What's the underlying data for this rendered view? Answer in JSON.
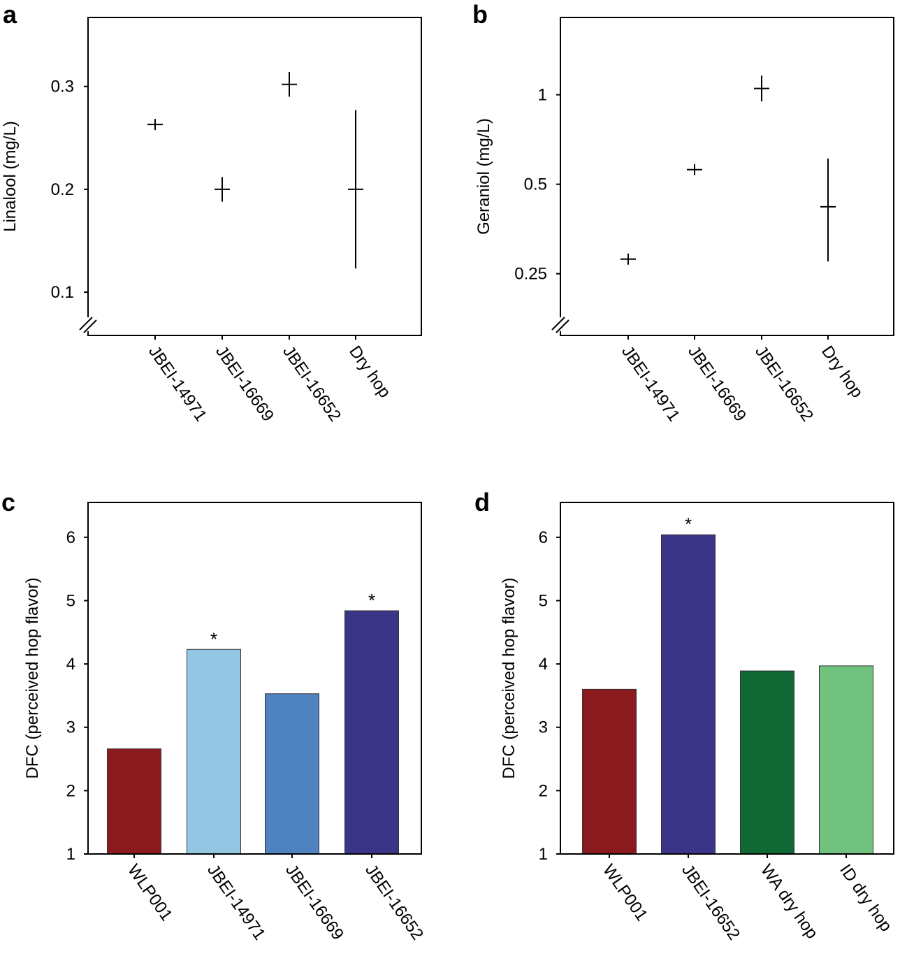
{
  "chart_data": [
    {
      "panel": "a",
      "type": "scatter",
      "ylabel": "Linalool (mg/L)",
      "yscale": "linear",
      "ylim": [
        0.058,
        0.367
      ],
      "yticks": [
        0.1,
        0.2,
        0.3
      ],
      "ytick_labels": [
        "0.1",
        "0.2",
        "0.3"
      ],
      "axis_break": true,
      "categories": [
        "JBEI-14971",
        "JBEI-16669",
        "JBEI-16652",
        "Dry hop"
      ],
      "values": [
        0.263,
        0.2,
        0.302,
        0.2
      ],
      "err_low": [
        0.263,
        0.188,
        0.29,
        0.123
      ],
      "err_high": [
        0.263,
        0.212,
        0.314,
        0.277
      ]
    },
    {
      "panel": "b",
      "type": "scatter",
      "ylabel": "Geraniol (mg/L)",
      "yscale": "log2",
      "ylim": [
        0.155,
        1.82
      ],
      "yticks": [
        0.25,
        0.5,
        1
      ],
      "ytick_labels": [
        "0.25",
        "0.5",
        "1"
      ],
      "axis_break": true,
      "categories": [
        "JBEI-14971",
        "JBEI-16669",
        "JBEI-16652",
        "Dry hop"
      ],
      "values": [
        0.28,
        0.56,
        1.05,
        0.42
      ],
      "err_low": [
        0.28,
        0.56,
        0.95,
        0.275
      ],
      "err_high": [
        0.28,
        0.56,
        1.16,
        0.61
      ]
    },
    {
      "panel": "c",
      "type": "bar",
      "ylabel": "DFC (perceived hop flavor)",
      "ylim": [
        1,
        6.55
      ],
      "yticks": [
        1,
        2,
        3,
        4,
        5,
        6
      ],
      "ytick_labels": [
        "1",
        "2",
        "3",
        "4",
        "5",
        "6"
      ],
      "categories": [
        "WLP001",
        "JBEI-14971",
        "JBEI-16669",
        "JBEI-16652"
      ],
      "values": [
        2.66,
        4.23,
        3.53,
        4.84
      ],
      "colors": [
        "#8b1a1e",
        "#94c6e4",
        "#4f83bf",
        "#3a3587"
      ],
      "significance": [
        "",
        "*",
        "",
        "*"
      ]
    },
    {
      "panel": "d",
      "type": "bar",
      "ylabel": "DFC (perceived hop flavor)",
      "ylim": [
        1,
        6.55
      ],
      "yticks": [
        1,
        2,
        3,
        4,
        5,
        6
      ],
      "ytick_labels": [
        "1",
        "2",
        "3",
        "4",
        "5",
        "6"
      ],
      "categories": [
        "WLP001",
        "JBEI-16652",
        "WA dry hop",
        "ID dry hop"
      ],
      "values": [
        3.6,
        6.04,
        3.89,
        3.97
      ],
      "colors": [
        "#8b1a1e",
        "#3a3587",
        "#0f6734",
        "#70c27e"
      ],
      "significance": [
        "",
        "*",
        "",
        ""
      ]
    }
  ]
}
